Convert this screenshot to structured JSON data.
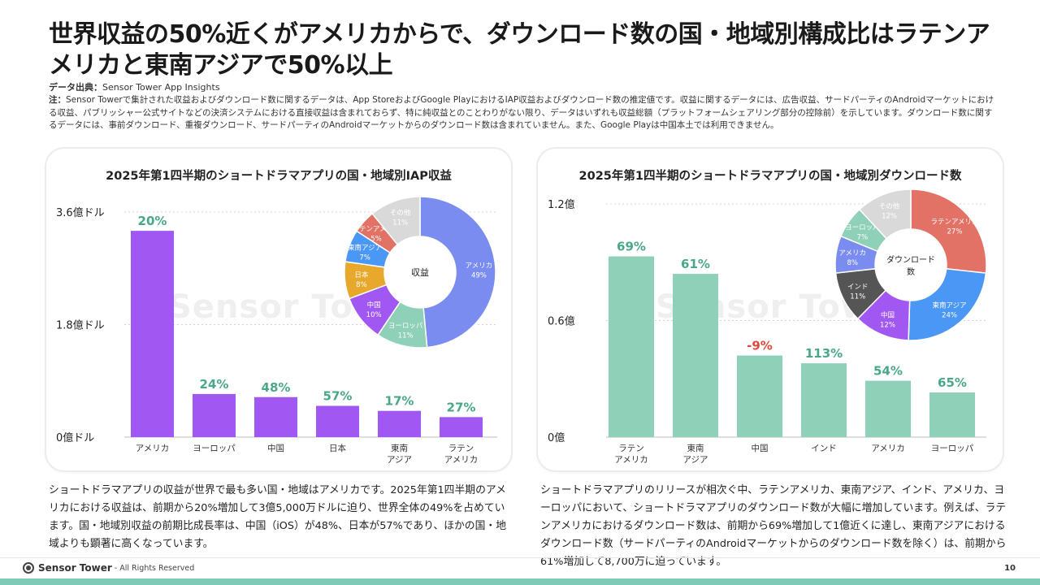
{
  "title": "世界収益の50%近くがアメリカからで、ダウンロード数の国・地域別構成比はラテンアメリカと東南アジアで50%以上",
  "source": {
    "label": "データ出典：",
    "value": "Sensor Tower App Insights"
  },
  "note": {
    "label": "注：",
    "text": "Sensor Towerで集計された収益およびダウンロード数に関するデータは、App StoreおよびGoogle PlayにおけるIAP収益およびダウンロード数の推定値です。収益に関するデータには、広告収益、サードパーティのAndroidマーケットにおける収益、パブリッシャー公式サイトなどの決済システムにおける直接収益は含まれておらず、特に純収益とのことわりがない限り、データはいずれも収益総額（プラットフォームシェアリング部分の控除前）を示しています。ダウンロード数に関するデータには、事前ダウンロード、重複ダウンロード、サードパーティのAndroidマーケットからのダウンロード数は含まれていません。また、Google Playは中国本土では利用できません。"
  },
  "watermark": "Sensor Tower",
  "chart_data": [
    {
      "type": "bar",
      "title": "2025年第1四半期のショートドラマアプリの国・地域別IAP収益",
      "categories": [
        "アメリカ",
        "ヨーロッパ",
        "中国",
        "日本",
        "東南アジア",
        "ラテンアメリカ"
      ],
      "values": [
        3.3,
        0.69,
        0.64,
        0.5,
        0.42,
        0.32
      ],
      "growth_labels": [
        "20%",
        "24%",
        "48%",
        "57%",
        "17%",
        "27%"
      ],
      "ylim": [
        0,
        3.6
      ],
      "yticks": [
        {
          "v": 0,
          "label": "0億ドル"
        },
        {
          "v": 1.8,
          "label": "1.8億ドル"
        },
        {
          "v": 3.6,
          "label": "3.6億ドル"
        }
      ],
      "bar_color": "#a158f2",
      "growth_color": "#4aa886",
      "donut": {
        "center_label": "収益",
        "slices": [
          {
            "name": "アメリカ",
            "value": 49,
            "label": "49%",
            "color": "#7b8cf0"
          },
          {
            "name": "ヨーロッパ",
            "value": 11,
            "label": "11%",
            "color": "#8fd0b8"
          },
          {
            "name": "中国",
            "value": 10,
            "label": "10%",
            "color": "#a158f2"
          },
          {
            "name": "日本",
            "value": 8,
            "label": "8%",
            "color": "#e8a82b"
          },
          {
            "name": "東南アジア",
            "value": 7,
            "label": "7%",
            "color": "#4b97f5"
          },
          {
            "name": "ラテンアメリカ",
            "value": 5,
            "label": "5%",
            "color": "#e27266"
          },
          {
            "name": "その他",
            "value": 11,
            "label": "11%",
            "color": "#d9d9d9"
          }
        ]
      }
    },
    {
      "type": "bar",
      "title": "2025年第1四半期のショートドラマアプリの国・地域別ダウンロード数",
      "categories": [
        "ラテンアメリカ",
        "東南アジア",
        "中国",
        "インド",
        "アメリカ",
        "ヨーロッパ"
      ],
      "values": [
        0.93,
        0.84,
        0.42,
        0.38,
        0.29,
        0.23
      ],
      "growth_labels": [
        "69%",
        "61%",
        "-9%",
        "113%",
        "54%",
        "65%"
      ],
      "ylim": [
        0,
        1.2
      ],
      "yticks": [
        {
          "v": 0,
          "label": "0億"
        },
        {
          "v": 0.6,
          "label": "0.6億"
        },
        {
          "v": 1.2,
          "label": "1.2億"
        }
      ],
      "bar_color": "#8fd0b8",
      "growth_color": "#4aa886",
      "negative_color": "#e04a3b",
      "donut": {
        "center_label": "ダウンロード数",
        "slices": [
          {
            "name": "ラテンアメリカ",
            "value": 27,
            "label": "27%",
            "color": "#e27266"
          },
          {
            "name": "東南アジア",
            "value": 24,
            "label": "24%",
            "color": "#4b97f5"
          },
          {
            "name": "中国",
            "value": 12,
            "label": "12%",
            "color": "#a158f2"
          },
          {
            "name": "インド",
            "value": 11,
            "label": "11%",
            "color": "#555555"
          },
          {
            "name": "アメリカ",
            "value": 8,
            "label": "8%",
            "color": "#7b8cf0"
          },
          {
            "name": "ヨーロッパ",
            "value": 7,
            "label": "7%",
            "color": "#8fd0b8"
          },
          {
            "name": "その他",
            "value": 12,
            "label": "12%",
            "color": "#d9d9d9"
          }
        ]
      }
    }
  ],
  "captions": {
    "left": "ショートドラマアプリの収益が世界で最も多い国・地域はアメリカです。2025年第1四半期のアメリカにおける収益は、前期から20%増加して3億5,000万ドルに迫り、世界全体の49%を占めています。国・地域別収益の前期比成長率は、中国（iOS）が48%、日本が57%であり、ほかの国・地域よりも顕著に高くなっています。",
    "right": "ショートドラマアプリのリリースが相次ぐ中、ラテンアメリカ、東南アジア、インド、アメリカ、ヨーロッパにおいて、ショートドラマアプリのダウンロード数が大幅に増加しています。例えば、ラテンアメリカにおけるダウンロード数は、前期から69%増加して1億近くに達し、東南アジアにおけるダウンロード数（サードパーティのAndroidマーケットからのダウンロード数を除く）は、前期から61%増加して8,700万に迫っています。"
  },
  "footer": {
    "brand": "Sensor Tower",
    "rights": "- All Rights Reserved",
    "page": "10"
  }
}
